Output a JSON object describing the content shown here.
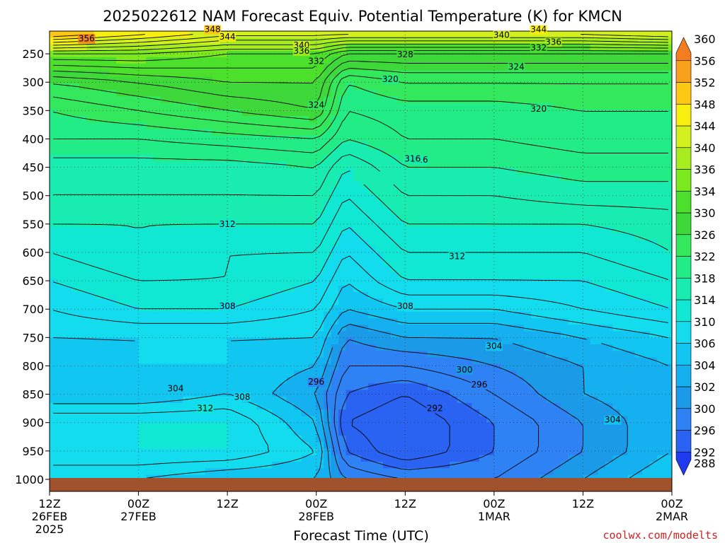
{
  "chart_data": {
    "type": "heatmap",
    "title": "2025022612 NAM Forecast Equiv. Potential Temperature (K) for KMCN",
    "xlabel": "Forecast Time (UTC)",
    "ylabel": "",
    "credit": "coolwx.com/modelts",
    "y_axis": {
      "scale": "pressure (hPa), top 210 to bottom 1015",
      "ylim": [
        1015,
        210
      ],
      "ticks": [
        "250",
        "300",
        "350",
        "400",
        "450",
        "500",
        "550",
        "600",
        "650",
        "700",
        "750",
        "800",
        "850",
        "900",
        "950",
        "1000"
      ],
      "tick_values": [
        250,
        300,
        350,
        400,
        450,
        500,
        550,
        600,
        650,
        700,
        750,
        800,
        850,
        900,
        950,
        1000
      ]
    },
    "x_axis": {
      "xlim_hours": [
        0,
        84
      ],
      "ticks": [
        {
          "hour": 0,
          "line1": "12Z",
          "line2": "26FEB",
          "line3": "2025"
        },
        {
          "hour": 12,
          "line1": "00Z",
          "line2": "27FEB",
          "line3": ""
        },
        {
          "hour": 24,
          "line1": "12Z",
          "line2": "",
          "line3": ""
        },
        {
          "hour": 36,
          "line1": "00Z",
          "line2": "28FEB",
          "line3": ""
        },
        {
          "hour": 48,
          "line1": "12Z",
          "line2": "",
          "line3": ""
        },
        {
          "hour": 60,
          "line1": "00Z",
          "line2": "1MAR",
          "line3": ""
        },
        {
          "hour": 72,
          "line1": "12Z",
          "line2": "",
          "line3": ""
        },
        {
          "hour": 84,
          "line1": "00Z",
          "line2": "2MAR",
          "line3": ""
        }
      ]
    },
    "colorbar": {
      "levels": [
        288,
        292,
        296,
        300,
        302,
        304,
        306,
        310,
        314,
        318,
        322,
        326,
        330,
        334,
        336,
        340,
        344,
        348,
        352,
        356,
        360
      ],
      "labels": [
        "288",
        "292",
        "296",
        "300",
        "302",
        "304",
        "306",
        "310",
        "314",
        "318",
        "322",
        "326",
        "330",
        "334",
        "336",
        "340",
        "344",
        "348",
        "352",
        "356",
        "360"
      ],
      "colors": [
        "#1f3bf0",
        "#2a62f2",
        "#2f82f4",
        "#1b9ae8",
        "#15b0ef",
        "#12c6f2",
        "#14dcef",
        "#10e8d4",
        "#18ecb0",
        "#22ec86",
        "#34e85e",
        "#3ed83a",
        "#4ce02c",
        "#7ce81e",
        "#a6ec1e",
        "#d2f01e",
        "#f8ee10",
        "#fcc814",
        "#f8a01c",
        "#f47d20",
        "#ee6420"
      ]
    },
    "theta_e_profile": {
      "note": "representative equivalent potential temperature (K) at selected times (forecast hour) and pressure levels (hPa)",
      "pressure_levels": [
        1000,
        950,
        900,
        850,
        800,
        750,
        700,
        650,
        600,
        550,
        500,
        450,
        400,
        350,
        300,
        250,
        210
      ],
      "times": [
        0,
        12,
        24,
        36,
        40,
        48,
        60,
        72,
        84
      ],
      "values": [
        [
          308,
          306,
          304,
          304,
          300,
          298,
          298,
          302,
          306
        ],
        [
          308,
          310,
          310,
          306,
          296,
          292,
          296,
          300,
          304
        ],
        [
          310,
          310,
          310,
          304,
          294,
          292,
          296,
          300,
          304
        ],
        [
          304,
          304,
          306,
          302,
          296,
          294,
          298,
          302,
          304
        ],
        [
          304,
          306,
          306,
          304,
          298,
          298,
          300,
          302,
          304
        ],
        [
          306,
          306,
          306,
          306,
          300,
          302,
          302,
          304,
          306
        ],
        [
          308,
          310,
          310,
          308,
          304,
          306,
          306,
          308,
          310
        ],
        [
          310,
          312,
          312,
          310,
          306,
          310,
          310,
          310,
          312
        ],
        [
          312,
          314,
          312,
          312,
          308,
          312,
          312,
          312,
          314
        ],
        [
          314,
          314,
          314,
          314,
          310,
          314,
          314,
          314,
          315
        ],
        [
          316,
          316,
          316,
          316,
          312,
          316,
          316,
          317,
          317
        ],
        [
          317,
          317,
          317,
          318,
          314,
          318,
          318,
          319,
          319
        ],
        [
          320,
          320,
          321,
          322,
          318,
          320,
          320,
          321,
          321
        ],
        [
          322,
          324,
          326,
          328,
          320,
          321,
          321,
          322,
          322
        ],
        [
          326,
          328,
          330,
          330,
          322,
          324,
          324,
          324,
          324
        ],
        [
          336,
          336,
          334,
          334,
          330,
          330,
          330,
          330,
          330
        ],
        [
          352,
          348,
          344,
          344,
          344,
          344,
          344,
          344,
          346
        ]
      ]
    },
    "contour_labels": [
      "348",
      "344",
      "340",
      "336",
      "332",
      "328",
      "324",
      "320",
      "316",
      "312",
      "308",
      "304",
      "300",
      "296",
      "292",
      "356"
    ]
  }
}
